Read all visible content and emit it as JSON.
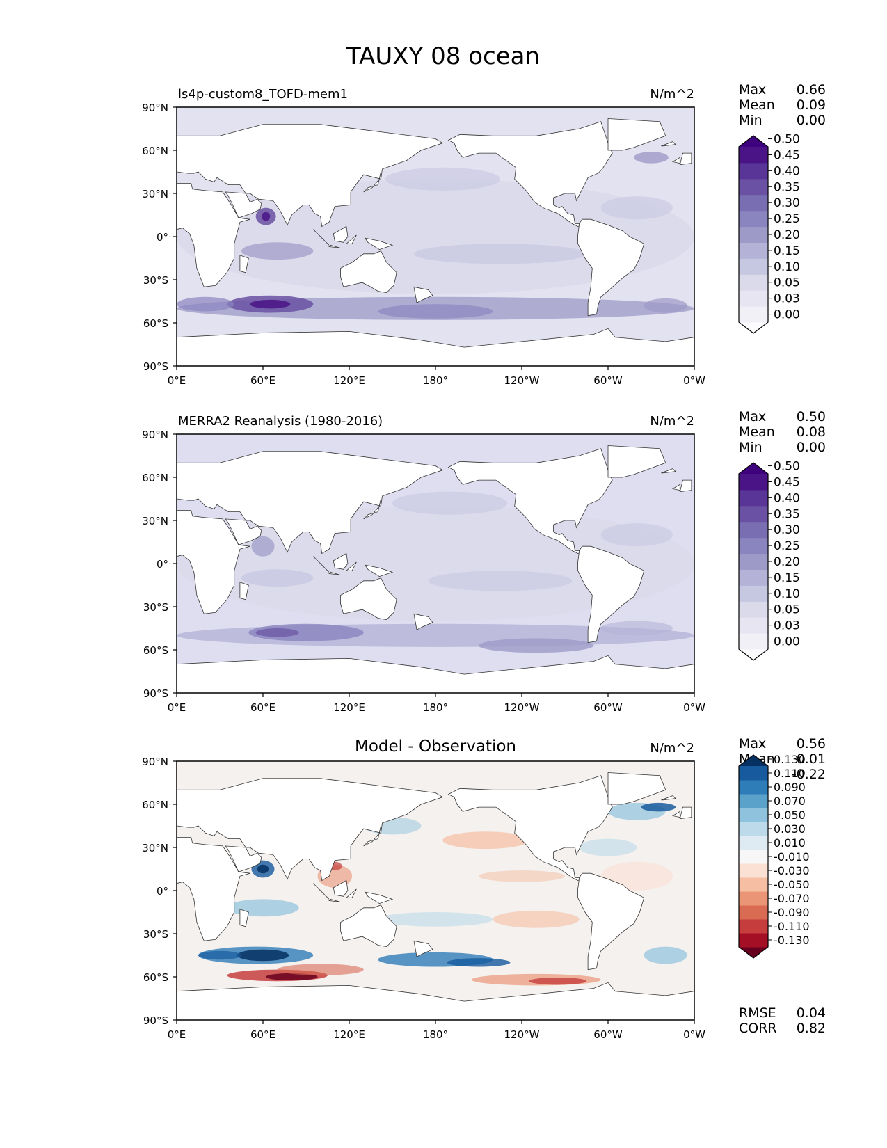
{
  "figure": {
    "title": "TAUXY 08 ocean"
  },
  "lon_ticks": [
    "0°E",
    "60°E",
    "120°E",
    "180°",
    "120°W",
    "60°W",
    "0°W"
  ],
  "lat_ticks": [
    "90°N",
    "60°N",
    "30°N",
    "0°",
    "30°S",
    "60°S",
    "90°S"
  ],
  "stat_labels": {
    "max": "Max",
    "mean": "Mean",
    "min": "Min",
    "rmse": "RMSE",
    "corr": "CORR"
  },
  "panels": [
    {
      "title": "ls4p-custom8_TOFD-mem1",
      "units": "N/m^2",
      "stats": {
        "max": "0.66",
        "mean": "0.09",
        "min": "0.00"
      }
    },
    {
      "title": "MERRA2 Reanalysis (1980-2016)",
      "units": "N/m^2",
      "stats": {
        "max": "0.50",
        "mean": "0.08",
        "min": "0.00"
      }
    },
    {
      "title": "Model - Observation",
      "units": "N/m^2",
      "stats": {
        "max": "0.56",
        "mean": "0.01",
        "min": "-0.22"
      },
      "rmse": "0.04",
      "corr": "0.82"
    }
  ],
  "chart_data": [
    {
      "type": "heatmap",
      "title": "ls4p-custom8_TOFD-mem1",
      "units": "N/m^2",
      "xlim": [
        0,
        360
      ],
      "ylim": [
        -90,
        90
      ],
      "colorbar_levels": [
        "0.00",
        "0.03",
        "0.05",
        "0.10",
        "0.15",
        "0.20",
        "0.25",
        "0.30",
        "0.35",
        "0.40",
        "0.45",
        "0.50"
      ],
      "colorbar_colors": [
        "#fcfbfd",
        "#f2f0f7",
        "#e6e5f1",
        "#dadaeb",
        "#c6c7e1",
        "#b4b3d7",
        "#9e9ac8",
        "#8a84bf",
        "#796eb2",
        "#6a51a3",
        "#5a3598",
        "#4a1486",
        "#3f007d"
      ],
      "max": 0.66,
      "mean": 0.09,
      "min": 0.0
    },
    {
      "type": "heatmap",
      "title": "MERRA2 Reanalysis (1980-2016)",
      "units": "N/m^2",
      "xlim": [
        0,
        360
      ],
      "ylim": [
        -90,
        90
      ],
      "colorbar_levels": [
        "0.00",
        "0.03",
        "0.05",
        "0.10",
        "0.15",
        "0.20",
        "0.25",
        "0.30",
        "0.35",
        "0.40",
        "0.45",
        "0.50"
      ],
      "colorbar_colors": [
        "#fcfbfd",
        "#f2f0f7",
        "#e6e5f1",
        "#dadaeb",
        "#c6c7e1",
        "#b4b3d7",
        "#9e9ac8",
        "#8a84bf",
        "#796eb2",
        "#6a51a3",
        "#5a3598",
        "#4a1486",
        "#3f007d"
      ],
      "max": 0.5,
      "mean": 0.08,
      "min": 0.0
    },
    {
      "type": "heatmap",
      "title": "Model - Observation",
      "units": "N/m^2",
      "xlim": [
        0,
        360
      ],
      "ylim": [
        -90,
        90
      ],
      "colorbar_levels": [
        "-0.130",
        "-0.110",
        "-0.090",
        "-0.070",
        "-0.050",
        "-0.030",
        "-0.010",
        "0.010",
        "0.030",
        "0.050",
        "0.070",
        "0.090",
        "0.110",
        "0.130"
      ],
      "colorbar_colors": [
        "#67001f",
        "#a50f26",
        "#c53e3d",
        "#d96b53",
        "#eb9577",
        "#f6bea2",
        "#fbe1d3",
        "#f7f7f7",
        "#deebf2",
        "#bcdaea",
        "#8fc2dd",
        "#5ba2cb",
        "#2f7db8",
        "#175a9e",
        "#053061"
      ],
      "max": 0.56,
      "mean": 0.01,
      "min": -0.22,
      "rmse": 0.04,
      "corr": 0.82
    }
  ]
}
